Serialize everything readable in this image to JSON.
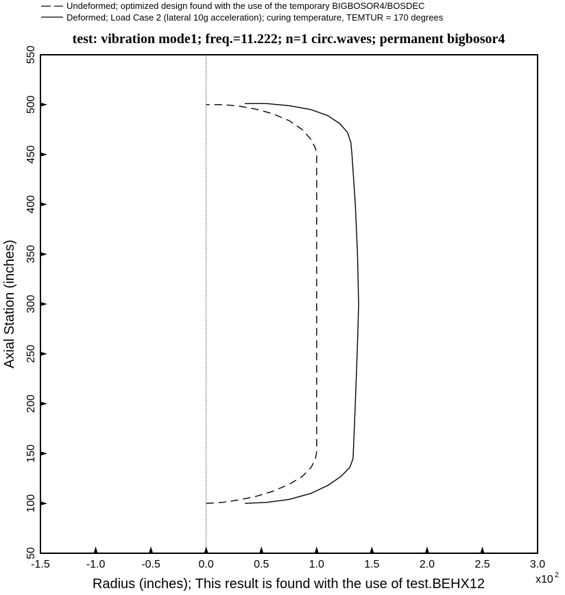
{
  "chart_data": {
    "type": "line",
    "title": "test: vibration mode1; freq.=11.222; n=1 circ.waves; permanent bigbosor4",
    "xlabel": "Radius (inches); This result is found with the use of test.BEHX12",
    "ylabel": "Axial Station (inches)",
    "x_multiplier": "x10",
    "x_multiplier_exp": "2",
    "xlim": [
      -1.5,
      3.0
    ],
    "ylim": [
      50,
      550
    ],
    "xticks": [
      -1.5,
      -1.0,
      -0.5,
      0.0,
      0.5,
      1.0,
      1.5,
      2.0,
      2.5,
      3.0
    ],
    "xtick_labels": [
      "-1.5",
      "-1.0",
      "-0.5",
      "0.0",
      "0.5",
      "1.0",
      "1.5",
      "2.0",
      "2.5",
      "3.0"
    ],
    "yticks": [
      50,
      100,
      150,
      200,
      250,
      300,
      350,
      400,
      450,
      500,
      550
    ],
    "ytick_labels": [
      "50",
      "100",
      "150",
      "200",
      "250",
      "300",
      "350",
      "400",
      "450",
      "500",
      "550"
    ],
    "reference_line_x": 0.0,
    "legend_position": "top-left",
    "series": [
      {
        "name": "Undeformed; optimized design found with the use of the temporary BIGBOSOR4/BOSDEC",
        "style": "dashed",
        "x": [
          0.0,
          0.15,
          0.3,
          0.45,
          0.6,
          0.75,
          0.87,
          0.95,
          0.99,
          1.0,
          1.0,
          1.0,
          1.0,
          1.0,
          1.0,
          1.0,
          1.0,
          1.0,
          1.0,
          0.99,
          0.95,
          0.87,
          0.75,
          0.6,
          0.45,
          0.3,
          0.15,
          0.0
        ],
        "y": [
          100,
          101,
          103.5,
          107,
          112,
          119,
          127,
          136,
          145,
          152,
          200,
          250,
          300,
          350,
          400,
          448,
          450,
          450,
          450,
          456,
          465,
          475,
          484,
          491,
          495.5,
          498.5,
          500,
          500
        ]
      },
      {
        "name": "Deformed; Load Case 2 (lateral 10g acceleration); curing temperature, TEMTUR = 170 degrees",
        "style": "solid",
        "x": [
          0.35,
          0.55,
          0.75,
          0.95,
          1.1,
          1.22,
          1.3,
          1.33,
          1.35,
          1.37,
          1.38,
          1.37,
          1.35,
          1.32,
          1.31,
          1.28,
          1.21,
          1.1,
          0.95,
          0.75,
          0.55,
          0.35
        ],
        "y": [
          100,
          101,
          104,
          110,
          118,
          127,
          136,
          145,
          200,
          260,
          300,
          350,
          400,
          450,
          462,
          472,
          481,
          489,
          495,
          499,
          501,
          501
        ]
      }
    ]
  },
  "legend_items": [
    {
      "label": "Undeformed; optimized design found with the use of the temporary BIGBOSOR4/BOSDEC",
      "style": "dashed"
    },
    {
      "label": "Deformed; Load Case 2 (lateral 10g acceleration); curing temperature, TEMTUR = 170 degrees",
      "style": "solid"
    }
  ]
}
